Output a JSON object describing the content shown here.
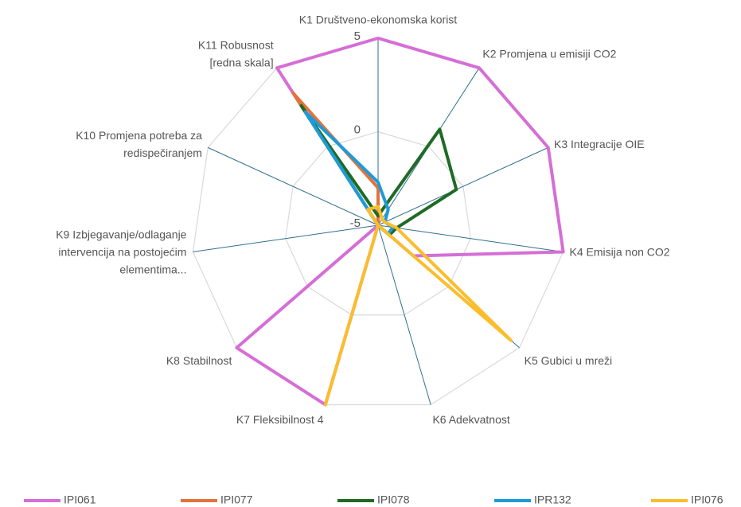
{
  "chart_data": {
    "type": "radar",
    "categories": [
      [
        "K1 Društveno-ekonomska korist"
      ],
      [
        "K2 Promjena u emisiji CO2"
      ],
      [
        "K3 Integracije OIE"
      ],
      [
        "K4 Emisija non CO2"
      ],
      [
        "K5 Gubici u mreži"
      ],
      [
        "K6 Adekvatnost"
      ],
      [
        "K7 Fleksibilnost 4"
      ],
      [
        "K8 Stabilnost"
      ],
      [
        "K9 Izbjegavanje/odlaganje",
        "intervencija na postojećim",
        "elementima..."
      ],
      [
        "K10 Promjena potreba za",
        "redispečiranjem"
      ],
      [
        "K11 Robusnost",
        "[redna skala]"
      ]
    ],
    "series": [
      {
        "name": "IPI061",
        "color": "#d56ed6",
        "values": [
          5,
          5,
          5,
          5,
          -2.5,
          -5,
          5,
          5,
          -5,
          -5,
          5
        ]
      },
      {
        "name": "IPI077",
        "color": "#e3733b",
        "values": [
          -3,
          -5,
          -5,
          -5,
          -5,
          -5,
          -5,
          -5,
          -5,
          -5,
          3.4
        ]
      },
      {
        "name": "IPI078",
        "color": "#1f6b26",
        "values": [
          -4.5,
          1.1,
          -0.4,
          -4,
          -4.2,
          -5,
          -5,
          -5,
          -5,
          -5,
          2.6
        ]
      },
      {
        "name": "IPR132",
        "color": "#1d9bd8",
        "values": [
          -2.7,
          -4,
          -4.6,
          -4.2,
          -4.3,
          -5,
          -5,
          -5,
          -5,
          -5,
          2.2
        ]
      },
      {
        "name": "IPI076",
        "color": "#fbbd2c",
        "values": [
          -4,
          -4.6,
          -4.6,
          -4,
          4.4,
          -5,
          5,
          -5,
          -5,
          -5,
          -4
        ]
      }
    ],
    "ylim": [
      -5,
      5
    ],
    "yticks": [
      -5,
      0,
      5
    ],
    "grid": true,
    "legend": "bottom"
  }
}
